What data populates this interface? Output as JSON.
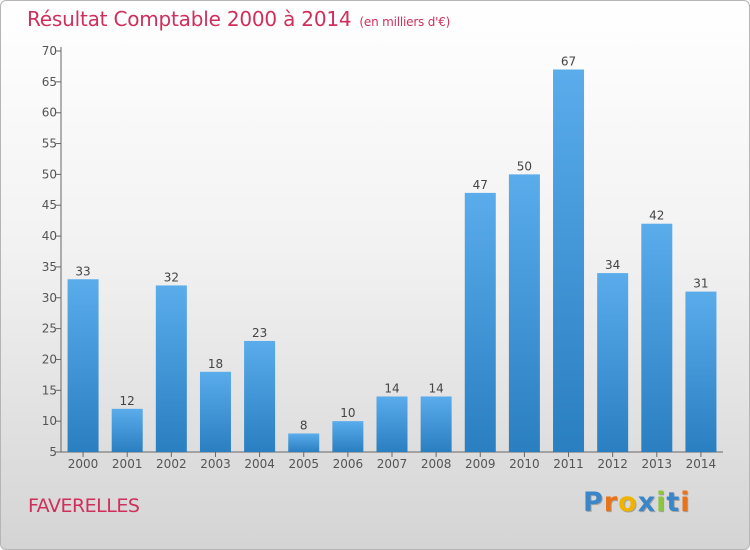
{
  "chart_data": {
    "type": "bar",
    "title": "Résultat Comptable 2000 à 2014",
    "subtitle": "(en milliers d'€)",
    "categories": [
      "2000",
      "2001",
      "2002",
      "2003",
      "2004",
      "2005",
      "2006",
      "2007",
      "2008",
      "2009",
      "2010",
      "2011",
      "2012",
      "2013",
      "2014"
    ],
    "values": [
      33,
      12,
      32,
      18,
      23,
      8,
      10,
      14,
      14,
      47,
      50,
      67,
      34,
      42,
      31
    ],
    "yticks": [
      5,
      10,
      15,
      20,
      25,
      30,
      35,
      40,
      45,
      50,
      55,
      60,
      65,
      70
    ],
    "ylim": [
      5,
      70
    ],
    "xlabel": "",
    "ylabel": "",
    "grid": false,
    "legend": "none"
  },
  "footer": {
    "name": "FAVERELLES",
    "logo": "Proxiti"
  },
  "colors": {
    "title": "#d02f5c",
    "bar_top": "#5aaceb",
    "bar_bottom": "#2a7fc1",
    "axis": "#666666",
    "logo_letters": [
      "#3a86c8",
      "#e8731a",
      "#f0b400",
      "#3a86c8",
      "#8cc63f",
      "#3a86c8",
      "#e8731a"
    ]
  }
}
